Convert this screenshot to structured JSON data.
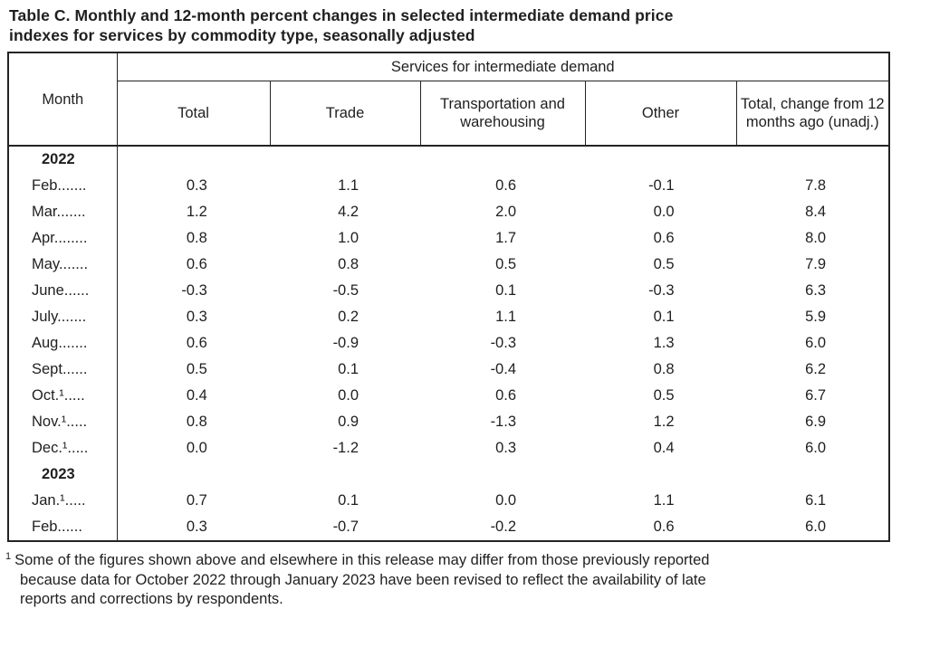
{
  "title": {
    "line1": "Table C. Monthly and 12-month percent changes in selected intermediate demand price",
    "line2": "indexes for services by commodity type, seasonally adjusted"
  },
  "colors": {
    "text": "#1f1f1f",
    "border": "#242424",
    "background": "#ffffff"
  },
  "table": {
    "month_header": "Month",
    "group_header": "Services for intermediate demand",
    "columns": [
      "Total",
      "Trade",
      "Transportation and warehousing",
      "Other",
      "Total, change from 12 months ago (unadj.)"
    ],
    "rows": [
      {
        "type": "year",
        "label": "2022",
        "cells": [
          "",
          "",
          "",
          "",
          ""
        ]
      },
      {
        "type": "month",
        "label": "Feb.......",
        "cells": [
          "0.3",
          "1.1",
          "0.6",
          "-0.1",
          "7.8"
        ]
      },
      {
        "type": "month",
        "label": "Mar.......",
        "cells": [
          "1.2",
          "4.2",
          "2.0",
          "0.0",
          "8.4"
        ]
      },
      {
        "type": "month",
        "label": "Apr........",
        "cells": [
          "0.8",
          "1.0",
          "1.7",
          "0.6",
          "8.0"
        ]
      },
      {
        "type": "month",
        "label": "May.......",
        "cells": [
          "0.6",
          "0.8",
          "0.5",
          "0.5",
          "7.9"
        ]
      },
      {
        "type": "month",
        "label": "June......",
        "cells": [
          "-0.3",
          "-0.5",
          "0.1",
          "-0.3",
          "6.3"
        ]
      },
      {
        "type": "month",
        "label": "July.......",
        "cells": [
          "0.3",
          "0.2",
          "1.1",
          "0.1",
          "5.9"
        ]
      },
      {
        "type": "month",
        "label": "Aug.......",
        "cells": [
          "0.6",
          "-0.9",
          "-0.3",
          "1.3",
          "6.0"
        ]
      },
      {
        "type": "month",
        "label": "Sept......",
        "cells": [
          "0.5",
          "0.1",
          "-0.4",
          "0.8",
          "6.2"
        ]
      },
      {
        "type": "month",
        "label": "Oct.¹.....",
        "cells": [
          "0.4",
          "0.0",
          "0.6",
          "0.5",
          "6.7"
        ]
      },
      {
        "type": "month",
        "label": "Nov.¹.....",
        "cells": [
          "0.8",
          "0.9",
          "-1.3",
          "1.2",
          "6.9"
        ]
      },
      {
        "type": "month",
        "label": "Dec.¹.....",
        "cells": [
          "0.0",
          "-1.2",
          "0.3",
          "0.4",
          "6.0"
        ]
      },
      {
        "type": "year",
        "label": "2023",
        "cells": [
          "",
          "",
          "",
          "",
          ""
        ]
      },
      {
        "type": "month",
        "label": "Jan.¹.....",
        "cells": [
          "0.7",
          "0.1",
          "0.0",
          "1.1",
          "6.1"
        ]
      },
      {
        "type": "month",
        "label": "Feb......",
        "cells": [
          "0.3",
          "-0.7",
          "-0.2",
          "0.6",
          "6.0"
        ]
      }
    ]
  },
  "footnote": {
    "marker": "1",
    "lines": [
      "Some of the figures shown above and elsewhere in this release may differ from those previously reported",
      "because data for October 2022 through January 2023 have been revised to reflect the availability of late",
      "reports and corrections by respondents."
    ]
  }
}
